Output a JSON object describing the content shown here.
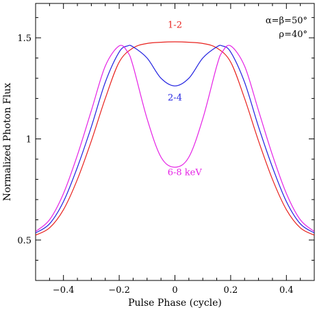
{
  "chart_data": {
    "type": "line",
    "xlabel": "Pulse Phase (cycle)",
    "ylabel": "Normalized Photon Flux",
    "xlim": [
      -0.5,
      0.5
    ],
    "ylim": [
      0.3,
      1.67
    ],
    "xticks": [
      -0.4,
      -0.2,
      0,
      0.2,
      0.4
    ],
    "xtick_labels": [
      "−0.4",
      "−0.2",
      "0",
      "0.2",
      "0.4"
    ],
    "yticks": [
      0.5,
      1,
      1.5
    ],
    "ytick_labels": [
      "0.5",
      "1",
      "1.5"
    ],
    "grid": false,
    "annotations": [
      {
        "text": "α=β=50°",
        "color": "#000000"
      },
      {
        "text": "ρ=40°",
        "color": "#000000"
      }
    ],
    "series": [
      {
        "name": "1-2",
        "color": "#e8201c",
        "label_at": [
          0,
          1.55
        ],
        "x": [
          -0.5,
          -0.45,
          -0.4,
          -0.35,
          -0.3,
          -0.25,
          -0.2,
          -0.15,
          -0.1,
          -0.05,
          0,
          0.05,
          0.1,
          0.15,
          0.2,
          0.25,
          0.3,
          0.35,
          0.4,
          0.45,
          0.5
        ],
        "y": [
          0.524,
          0.56,
          0.65,
          0.8,
          0.99,
          1.2,
          1.38,
          1.45,
          1.472,
          1.478,
          1.48,
          1.478,
          1.472,
          1.45,
          1.38,
          1.2,
          0.99,
          0.8,
          0.65,
          0.56,
          0.524
        ]
      },
      {
        "name": "2-4",
        "color": "#1f1fe0",
        "label_at": [
          0,
          1.19
        ],
        "x": [
          -0.5,
          -0.45,
          -0.4,
          -0.35,
          -0.3,
          -0.25,
          -0.2,
          -0.17,
          -0.15,
          -0.1,
          -0.05,
          0,
          0.05,
          0.1,
          0.15,
          0.17,
          0.2,
          0.25,
          0.3,
          0.35,
          0.4,
          0.45,
          0.5
        ],
        "y": [
          0.535,
          0.58,
          0.69,
          0.86,
          1.06,
          1.28,
          1.43,
          1.46,
          1.455,
          1.4,
          1.3,
          1.262,
          1.3,
          1.4,
          1.455,
          1.46,
          1.43,
          1.28,
          1.06,
          0.86,
          0.69,
          0.58,
          0.535
        ]
      },
      {
        "name": "6-8 keV",
        "color": "#e520e5",
        "label_at": [
          0.035,
          0.82
        ],
        "x": [
          -0.5,
          -0.45,
          -0.4,
          -0.35,
          -0.3,
          -0.25,
          -0.2,
          -0.17,
          -0.15,
          -0.1,
          -0.05,
          0,
          0.05,
          0.1,
          0.15,
          0.17,
          0.2,
          0.25,
          0.3,
          0.35,
          0.4,
          0.45,
          0.5
        ],
        "y": [
          0.542,
          0.6,
          0.73,
          0.92,
          1.14,
          1.36,
          1.46,
          1.43,
          1.36,
          1.1,
          0.91,
          0.86,
          0.91,
          1.1,
          1.36,
          1.43,
          1.46,
          1.36,
          1.14,
          0.92,
          0.73,
          0.6,
          0.542
        ]
      }
    ]
  }
}
